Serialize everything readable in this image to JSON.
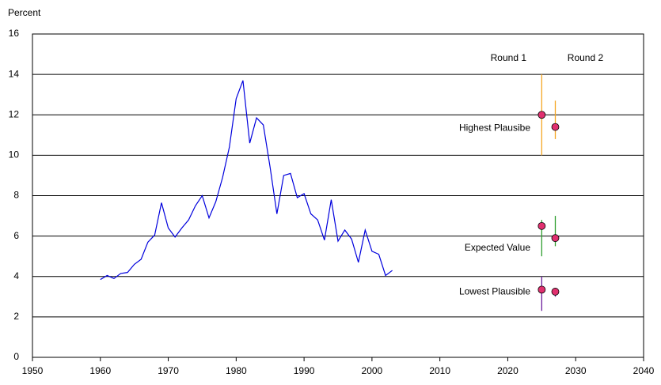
{
  "chart_data": {
    "type": "line",
    "y_label": "Percent",
    "x": [
      1960,
      1961,
      1962,
      1963,
      1964,
      1965,
      1966,
      1967,
      1968,
      1969,
      1970,
      1971,
      1972,
      1973,
      1974,
      1975,
      1976,
      1977,
      1978,
      1979,
      1980,
      1981,
      1982,
      1983,
      1984,
      1985,
      1986,
      1987,
      1988,
      1989,
      1990,
      1991,
      1992,
      1993,
      1994,
      1995,
      1996,
      1997,
      1998,
      1999,
      2000,
      2001,
      2002,
      2003
    ],
    "series": [
      {
        "color": "#0000dd",
        "values": [
          3.85,
          4.05,
          3.9,
          4.15,
          4.2,
          4.6,
          4.85,
          5.7,
          6.05,
          7.65,
          6.4,
          5.95,
          6.4,
          6.8,
          7.5,
          8.0,
          6.9,
          7.7,
          8.9,
          10.4,
          12.8,
          13.7,
          10.6,
          11.85,
          11.5,
          9.4,
          7.1,
          9.0,
          9.1,
          7.9,
          8.1,
          7.1,
          6.8,
          5.8,
          7.8,
          5.75,
          6.3,
          5.85,
          4.7,
          6.3,
          5.25,
          5.1,
          4.05,
          4.3
        ]
      }
    ],
    "estimate_labels": [
      "Highest Plausibe",
      "Expected Value",
      "Lowest Plausible"
    ],
    "range_colors": [
      "#f5a623",
      "#2e9e2e",
      "#6a1b9a"
    ],
    "marker_color": "#e0306f",
    "estimates": [
      {
        "name": "Round 1",
        "x": 2025,
        "values": [
          12.0,
          6.5,
          3.35
        ],
        "lows": [
          10.0,
          5.0,
          2.3
        ],
        "highs": [
          14.0,
          6.8,
          4.0
        ]
      },
      {
        "name": "Round 2",
        "x": 2027,
        "values": [
          11.4,
          5.9,
          3.25
        ],
        "lows": [
          10.8,
          5.5,
          3.0
        ],
        "highs": [
          12.7,
          7.0,
          3.4
        ]
      }
    ],
    "xlim": [
      1950,
      2040
    ],
    "xticks": [
      1950,
      1960,
      1970,
      1980,
      1990,
      2000,
      2010,
      2020,
      2030,
      2040
    ],
    "ylim": [
      0,
      16
    ],
    "yticks": [
      0,
      2,
      4,
      6,
      8,
      10,
      12,
      14,
      16
    ],
    "grid": true
  }
}
